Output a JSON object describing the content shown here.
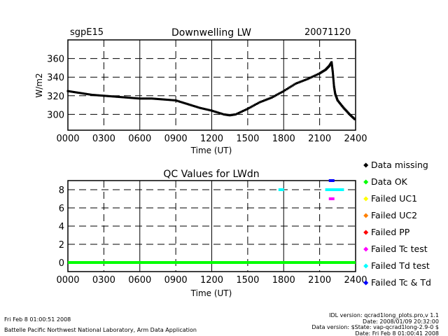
{
  "chart_data": [
    {
      "type": "scatter",
      "title": "Downwelling LW",
      "site": "sgpE15",
      "date": "20071120",
      "xlabel": "Time (UT)",
      "ylabel": "W/m2",
      "xlim": [
        0,
        2400
      ],
      "ylim": [
        283,
        380
      ],
      "xticks": [
        "0000",
        "0300",
        "0600",
        "0900",
        "1200",
        "1500",
        "1800",
        "2100",
        "2400"
      ],
      "yticks": [
        300,
        320,
        340,
        360
      ],
      "x": [
        0,
        100,
        200,
        300,
        400,
        500,
        600,
        700,
        800,
        900,
        1000,
        1100,
        1200,
        1300,
        1350,
        1400,
        1500,
        1600,
        1700,
        1800,
        1900,
        2000,
        2100,
        2150,
        2180,
        2200,
        2210,
        2220,
        2230,
        2250,
        2300,
        2350,
        2400
      ],
      "y": [
        325,
        323,
        321,
        320,
        319,
        318,
        317,
        317,
        316,
        315,
        311,
        307,
        304,
        300,
        299,
        300,
        306,
        313,
        318,
        325,
        333,
        338,
        344,
        348,
        352,
        356,
        345,
        330,
        322,
        315,
        307,
        300,
        294
      ]
    },
    {
      "type": "scatter",
      "title": "QC Values for LWdn",
      "xlabel": "Time (UT)",
      "xlim": [
        0,
        2400
      ],
      "ylim": [
        -1,
        9
      ],
      "xticks": [
        "0000",
        "0300",
        "0600",
        "0900",
        "1200",
        "1500",
        "1800",
        "2100",
        "2400"
      ],
      "yticks": [
        0,
        2,
        4,
        6,
        8
      ],
      "series": [
        {
          "name": "Data missing",
          "color": "#000000",
          "points": []
        },
        {
          "name": "Data OK",
          "color": "#00ff00",
          "points": [
            [
              0,
              0
            ],
            [
              2400,
              0
            ]
          ],
          "line": true
        },
        {
          "name": "Failed UC1",
          "color": "#ffff00",
          "points": []
        },
        {
          "name": "Failed UC2",
          "color": "#ff8000",
          "points": []
        },
        {
          "name": "Failed PP",
          "color": "#ff0000",
          "points": []
        },
        {
          "name": "Failed Tc test",
          "color": "#ff00ff",
          "points": [
            [
              2200,
              7
            ]
          ]
        },
        {
          "name": "Failed Td test",
          "color": "#00ffff",
          "points": [
            [
              1780,
              8
            ],
            [
              2170,
              8
            ],
            [
              2200,
              8
            ],
            [
              2220,
              8
            ],
            [
              2250,
              8
            ],
            [
              2280,
              8
            ]
          ]
        },
        {
          "name": "Failed Tc & Td",
          "color": "#0000ff",
          "points": [
            [
              2200,
              9
            ]
          ]
        }
      ]
    }
  ],
  "footer": {
    "timestamp": "Fri Feb  8 01:00:51 2008",
    "org": "Battelle Pacific Northwest National Laboratory, Arm Data Application",
    "idl": "IDL version: qcrad1long_plots.pro,v 1.1",
    "idl_date": "Date: 2008/01/09 20:32:00",
    "data_version": "Data version: $State: vap-qcrad1long-2.9-0 $",
    "data_date": "Date: Fri Feb  8 01:00:41 2008"
  }
}
